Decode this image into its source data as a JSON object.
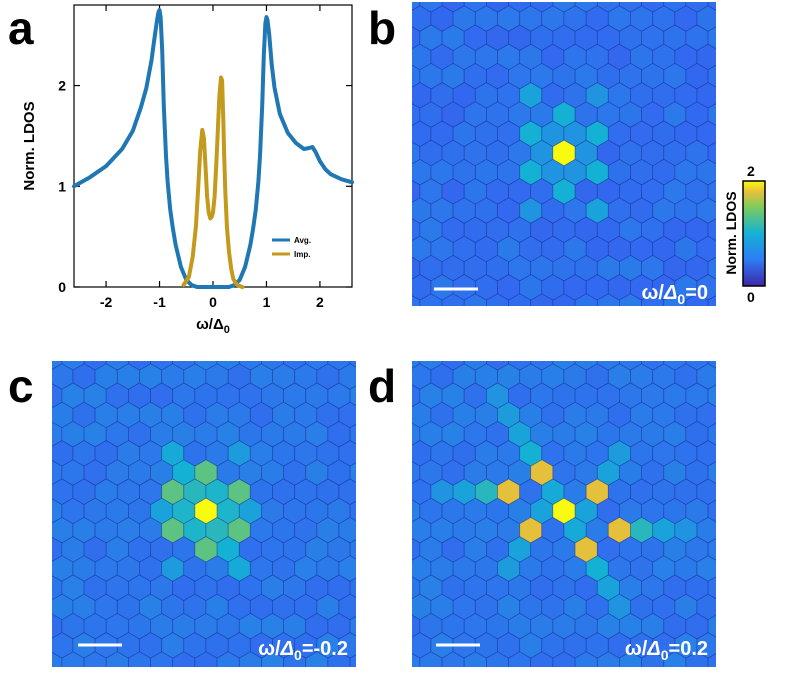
{
  "panel_labels": {
    "a": "a",
    "b": "b",
    "c": "c",
    "d": "d"
  },
  "chart_data": {
    "type": "line",
    "title": "",
    "xlabel": "ω/Δ0",
    "xlabel_main": "ω/Δ",
    "xlabel_sub": "0",
    "ylabel": "Norm. LDOS",
    "xlim": [
      -2.6,
      2.6
    ],
    "ylim": [
      0,
      2.8
    ],
    "xticks": [
      -2,
      -1,
      0,
      1,
      2
    ],
    "xtick_labels": [
      "-2",
      "-1",
      "0",
      "1",
      "2"
    ],
    "yticks": [
      0,
      1,
      2
    ],
    "ytick_labels": [
      "0",
      "1",
      "2"
    ],
    "legend_position": "right",
    "series": [
      {
        "name": "Avg.",
        "color": "#1f77b4",
        "x": [
          -2.6,
          -2.3,
          -2.0,
          -1.7,
          -1.5,
          -1.35,
          -1.25,
          -1.15,
          -1.1,
          -1.05,
          -1.02,
          -1.0,
          -0.98,
          -0.95,
          -0.92,
          -0.88,
          -0.85,
          -0.8,
          -0.75,
          -0.7,
          -0.6,
          -0.5,
          -0.4,
          -0.3,
          -0.2,
          -0.1,
          0.0,
          0.1,
          0.2,
          0.3,
          0.4,
          0.5,
          0.6,
          0.7,
          0.75,
          0.8,
          0.85,
          0.88,
          0.92,
          0.95,
          0.98,
          1.0,
          1.02,
          1.05,
          1.1,
          1.15,
          1.25,
          1.4,
          1.55,
          1.7,
          1.8,
          1.86,
          1.92,
          2.0,
          2.1,
          2.2,
          2.4,
          2.6
        ],
        "y": [
          1.0,
          1.09,
          1.2,
          1.37,
          1.55,
          1.78,
          1.97,
          2.25,
          2.45,
          2.64,
          2.73,
          2.75,
          2.68,
          2.35,
          1.8,
          1.3,
          1.05,
          0.77,
          0.58,
          0.42,
          0.2,
          0.07,
          0.02,
          0.0,
          0.0,
          0.0,
          0.0,
          0.0,
          0.0,
          0.0,
          0.02,
          0.07,
          0.2,
          0.42,
          0.58,
          0.77,
          1.05,
          1.3,
          1.8,
          2.3,
          2.62,
          2.68,
          2.65,
          2.52,
          2.2,
          1.98,
          1.72,
          1.53,
          1.43,
          1.37,
          1.38,
          1.39,
          1.34,
          1.25,
          1.17,
          1.12,
          1.07,
          1.04
        ]
      },
      {
        "name": "Imp.",
        "color": "#c49a1c",
        "x": [
          -0.55,
          -0.45,
          -0.38,
          -0.32,
          -0.28,
          -0.24,
          -0.2,
          -0.17,
          -0.14,
          -0.11,
          -0.08,
          -0.05,
          -0.02,
          0.0,
          0.03,
          0.06,
          0.09,
          0.12,
          0.15,
          0.17,
          0.19,
          0.21,
          0.23,
          0.26,
          0.3,
          0.34,
          0.38,
          0.45,
          0.55
        ],
        "y": [
          0.02,
          0.1,
          0.3,
          0.6,
          0.95,
          1.35,
          1.56,
          1.48,
          1.2,
          0.9,
          0.74,
          0.68,
          0.7,
          0.74,
          0.9,
          1.2,
          1.55,
          1.9,
          2.08,
          2.05,
          1.7,
          1.3,
          0.95,
          0.6,
          0.35,
          0.18,
          0.08,
          0.02,
          0.0
        ]
      }
    ]
  },
  "colorbar": {
    "label": "Norm. LDOS",
    "max_label": "2",
    "min_label": "0",
    "min": 0,
    "max": 2
  },
  "maps": [
    {
      "id": "b",
      "energy_main": "ω/",
      "energy_delta": "Δ",
      "energy_sub": "0",
      "energy_rest": "=0",
      "background_level": 0.55,
      "sites": [
        {
          "dq": 0,
          "dr": 0,
          "v": 2.0
        },
        {
          "dq": -2,
          "dr": 1,
          "v": 1.0
        },
        {
          "dq": 2,
          "dr": -1,
          "v": 1.0
        },
        {
          "dq": -1,
          "dr": 2,
          "v": 1.0
        },
        {
          "dq": 1,
          "dr": -2,
          "v": 1.0
        },
        {
          "dq": 1,
          "dr": 1,
          "v": 1.0
        },
        {
          "dq": -1,
          "dr": -1,
          "v": 1.0
        },
        {
          "dq": 0,
          "dr": 1,
          "v": 0.8
        },
        {
          "dq": 0,
          "dr": -1,
          "v": 0.8
        },
        {
          "dq": 1,
          "dr": 0,
          "v": 0.8
        },
        {
          "dq": -1,
          "dr": 0,
          "v": 0.8
        },
        {
          "dq": 1,
          "dr": -1,
          "v": 0.8
        },
        {
          "dq": -1,
          "dr": 1,
          "v": 0.8
        },
        {
          "dq": 0,
          "dr": 3,
          "v": 0.9
        },
        {
          "dq": 0,
          "dr": -3,
          "v": 0.9
        },
        {
          "dq": 3,
          "dr": -3,
          "v": 0.8
        },
        {
          "dq": -3,
          "dr": 3,
          "v": 0.8
        }
      ]
    },
    {
      "id": "c",
      "energy_main": "ω/",
      "energy_delta": "Δ",
      "energy_sub": "0",
      "energy_rest": "=-0.2",
      "background_level": 0.6,
      "sites": [
        {
          "dq": 0,
          "dr": 0,
          "v": 2.0
        },
        {
          "dq": -1,
          "dr": 2,
          "v": 1.35
        },
        {
          "dq": 1,
          "dr": -2,
          "v": 1.35
        },
        {
          "dq": 1,
          "dr": 1,
          "v": 1.35
        },
        {
          "dq": -1,
          "dr": -1,
          "v": 1.35
        },
        {
          "dq": 2,
          "dr": -1,
          "v": 1.35
        },
        {
          "dq": -2,
          "dr": 1,
          "v": 1.35
        },
        {
          "dq": 0,
          "dr": 1,
          "v": 1.1
        },
        {
          "dq": 0,
          "dr": -1,
          "v": 1.1
        },
        {
          "dq": 1,
          "dr": 0,
          "v": 1.05
        },
        {
          "dq": -1,
          "dr": 0,
          "v": 1.05
        },
        {
          "dq": 1,
          "dr": -1,
          "v": 1.05
        },
        {
          "dq": -1,
          "dr": 1,
          "v": 1.05
        },
        {
          "dq": 0,
          "dr": 2,
          "v": 1.0
        },
        {
          "dq": 0,
          "dr": -2,
          "v": 1.0
        },
        {
          "dq": 2,
          "dr": 0,
          "v": 0.9
        },
        {
          "dq": -2,
          "dr": 0,
          "v": 0.9
        },
        {
          "dq": 0,
          "dr": 3,
          "v": 0.95
        },
        {
          "dq": 0,
          "dr": -3,
          "v": 0.95
        },
        {
          "dq": 3,
          "dr": -3,
          "v": 0.85
        },
        {
          "dq": -3,
          "dr": 3,
          "v": 0.85
        }
      ]
    },
    {
      "id": "d",
      "energy_main": "ω/",
      "energy_delta": "Δ",
      "energy_sub": "0",
      "energy_rest": "=0.2",
      "background_level": 0.6,
      "sites": [
        {
          "dq": 0,
          "dr": 0,
          "v": 2.0
        },
        {
          "dq": 0,
          "dr": -2,
          "v": 1.75
        },
        {
          "dq": 0,
          "dr": 2,
          "v": 1.75
        },
        {
          "dq": -2,
          "dr": 1,
          "v": 1.75
        },
        {
          "dq": 2,
          "dr": -1,
          "v": 1.75
        },
        {
          "dq": -2,
          "dr": -1,
          "v": 1.75
        },
        {
          "dq": 2,
          "dr": 1,
          "v": 1.75
        },
        {
          "dq": 0,
          "dr": 1,
          "v": 0.95
        },
        {
          "dq": 0,
          "dr": -1,
          "v": 0.95
        },
        {
          "dq": 1,
          "dr": 0,
          "v": 0.9
        },
        {
          "dq": -1,
          "dr": 0,
          "v": 0.9
        },
        {
          "dq": 0,
          "dr": -3,
          "v": 1.0
        },
        {
          "dq": 0,
          "dr": -4,
          "v": 0.9
        },
        {
          "dq": 0,
          "dr": -5,
          "v": 0.85
        },
        {
          "dq": 0,
          "dr": -6,
          "v": 0.8
        },
        {
          "dq": 0,
          "dr": 3,
          "v": 1.0
        },
        {
          "dq": 0,
          "dr": 4,
          "v": 0.9
        },
        {
          "dq": 0,
          "dr": 5,
          "v": 0.8
        },
        {
          "dq": 3,
          "dr": 1,
          "v": 1.1
        },
        {
          "dq": -3,
          "dr": -1,
          "v": 1.1
        },
        {
          "dq": 4,
          "dr": 1,
          "v": 0.9
        },
        {
          "dq": -4,
          "dr": -1,
          "v": 0.9
        },
        {
          "dq": 5,
          "dr": 1,
          "v": 0.8
        },
        {
          "dq": -5,
          "dr": -1,
          "v": 0.8
        },
        {
          "dq": 3,
          "dr": -2,
          "v": 0.9
        },
        {
          "dq": -3,
          "dr": 2,
          "v": 0.9
        },
        {
          "dq": 4,
          "dr": -3,
          "v": 0.85
        },
        {
          "dq": -4,
          "dr": 3,
          "v": 0.85
        }
      ]
    }
  ]
}
